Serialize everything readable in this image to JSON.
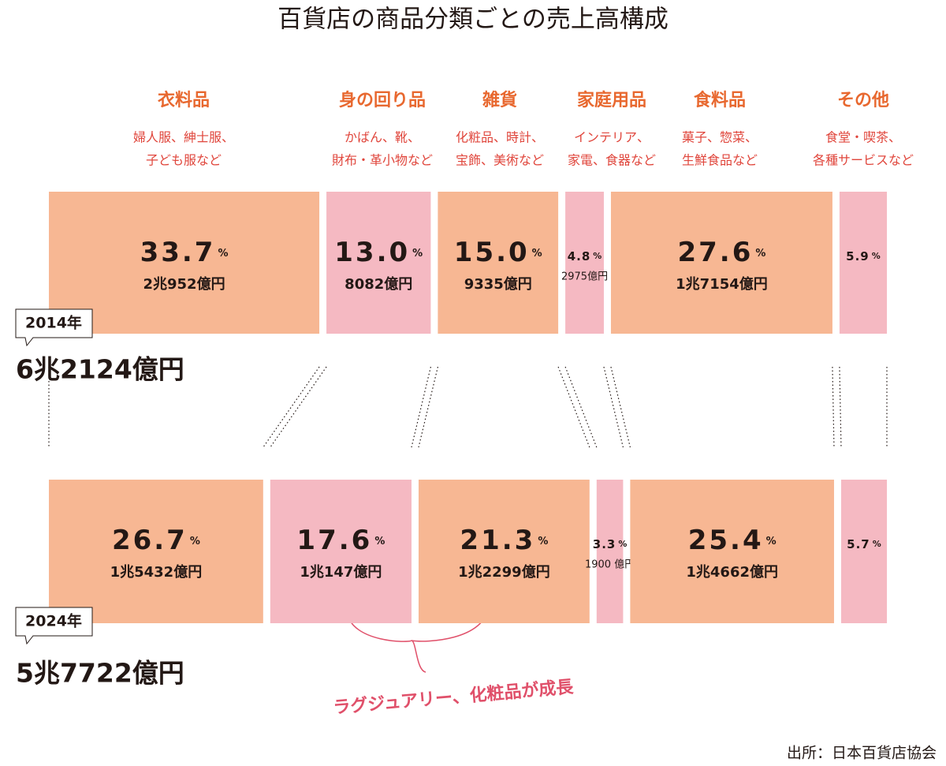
{
  "chart_data": {
    "type": "bar",
    "title": "百貨店の商品分類ごとの売上高構成",
    "categories": [
      "衣料品",
      "身の回り品",
      "雑貨",
      "家庭用品",
      "食料品",
      "その他"
    ],
    "category_notes": [
      [
        "婦人服、紳士服、",
        "子ども服など"
      ],
      [
        "かばん、靴、",
        "財布・革小物など"
      ],
      [
        "化粧品、時計、",
        "宝飾、美術など"
      ],
      [
        "インテリア、",
        "家電、食器など"
      ],
      [
        "菓子、惣菜、",
        "生鮮食品など"
      ],
      [
        "食堂・喫茶、",
        "各種サービスなど"
      ]
    ],
    "colors": [
      "#f7b793",
      "#f5b9c2",
      "#f7b793",
      "#f5b9c2",
      "#f7b793",
      "#f5b9c2"
    ],
    "unit": "%",
    "series": [
      {
        "name": "2014年",
        "total": "6兆2124億円",
        "values": [
          33.7,
          13.0,
          15.0,
          4.8,
          27.6,
          5.9
        ],
        "value_labels": [
          "33.7",
          "13.0",
          "15.0",
          "4.8",
          "27.6",
          "5.9"
        ],
        "amounts": [
          "2兆952億円",
          "8082億円",
          "9335億円",
          "2975億円",
          "1兆7154億円",
          null
        ]
      },
      {
        "name": "2024年",
        "total": "5兆7722億円",
        "values": [
          26.7,
          17.6,
          21.3,
          3.3,
          25.4,
          5.7
        ],
        "value_labels": [
          "26.7",
          "17.6",
          "21.3",
          "3.3",
          "25.4",
          "5.7"
        ],
        "amounts": [
          "1兆5432億円",
          "1兆147億円",
          "1兆2299億円",
          "1900 億円",
          "1兆4662億円",
          null
        ]
      }
    ],
    "annotation": "ラグジュアリー、化粧品が成長",
    "source": "出所：日本百貨店協会"
  }
}
